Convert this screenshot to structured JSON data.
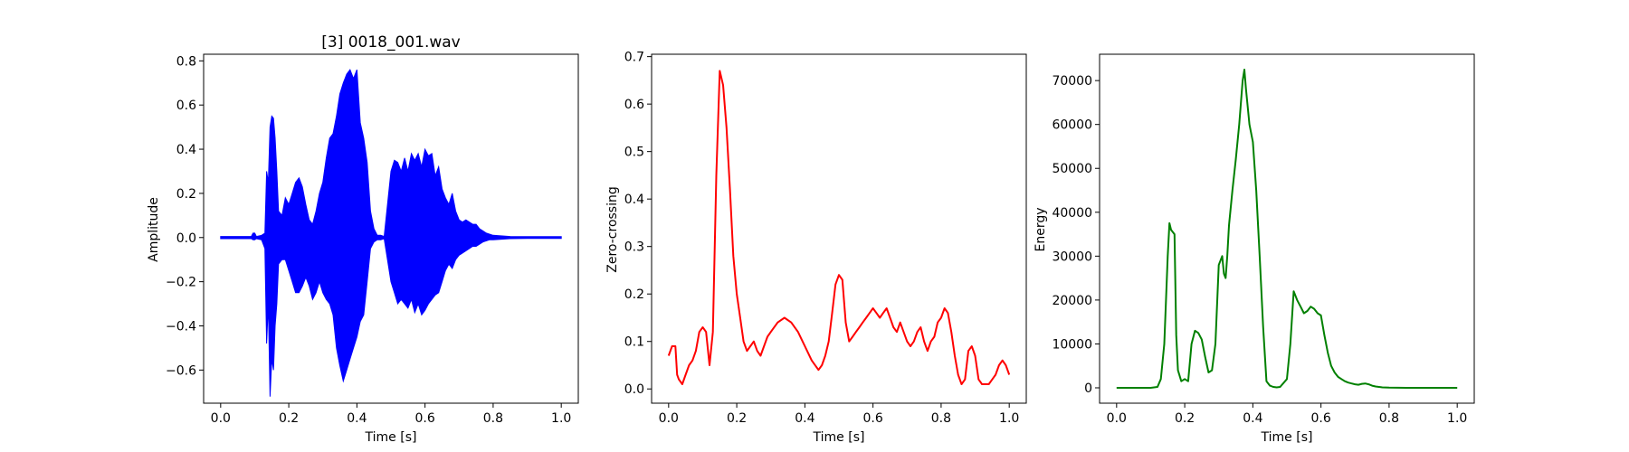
{
  "chart_data": [
    {
      "type": "line",
      "title": "[3] 0018_001.wav",
      "xlabel": "Time [s]",
      "ylabel": "Amplitude",
      "xlim": [
        -0.05,
        1.05
      ],
      "ylim": [
        -0.75,
        0.83
      ],
      "xticks": [
        0.0,
        0.2,
        0.4,
        0.6,
        0.8,
        1.0
      ],
      "xtick_labels": [
        "0.0",
        "0.2",
        "0.4",
        "0.6",
        "0.8",
        "1.0"
      ],
      "yticks": [
        -0.6,
        -0.4,
        -0.2,
        0.0,
        0.2,
        0.4,
        0.6,
        0.8
      ],
      "ytick_labels": [
        "−0.6",
        "−0.4",
        "−0.2",
        "0.0",
        "0.2",
        "0.4",
        "0.6",
        "0.8"
      ],
      "grid": false,
      "legend": "none",
      "color": "#0000ff",
      "render": "envelope",
      "series": [
        {
          "x": [
            0.0,
            0.09,
            0.095,
            0.1,
            0.105,
            0.12,
            0.13,
            0.135,
            0.14,
            0.145,
            0.15,
            0.155,
            0.16,
            0.165,
            0.17,
            0.18,
            0.19,
            0.2,
            0.21,
            0.22,
            0.23,
            0.24,
            0.25,
            0.26,
            0.27,
            0.28,
            0.29,
            0.3,
            0.31,
            0.32,
            0.33,
            0.34,
            0.35,
            0.36,
            0.37,
            0.38,
            0.39,
            0.4,
            0.41,
            0.42,
            0.43,
            0.44,
            0.45,
            0.46,
            0.47,
            0.48,
            0.5,
            0.51,
            0.52,
            0.53,
            0.54,
            0.55,
            0.56,
            0.57,
            0.58,
            0.59,
            0.6,
            0.61,
            0.62,
            0.63,
            0.64,
            0.65,
            0.66,
            0.67,
            0.68,
            0.69,
            0.7,
            0.71,
            0.72,
            0.73,
            0.74,
            0.75,
            0.76,
            0.77,
            0.78,
            0.79,
            0.8,
            0.85,
            0.9,
            1.0
          ],
          "y_max": [
            0.005,
            0.005,
            0.02,
            0.02,
            0.005,
            0.01,
            0.02,
            0.3,
            0.25,
            0.5,
            0.55,
            0.54,
            0.45,
            0.3,
            0.12,
            0.1,
            0.18,
            0.15,
            0.2,
            0.25,
            0.27,
            0.23,
            0.15,
            0.08,
            0.06,
            0.12,
            0.2,
            0.25,
            0.36,
            0.45,
            0.47,
            0.55,
            0.65,
            0.7,
            0.74,
            0.76,
            0.72,
            0.76,
            0.52,
            0.45,
            0.34,
            0.12,
            0.04,
            0.01,
            0.01,
            0.005,
            0.3,
            0.35,
            0.34,
            0.3,
            0.36,
            0.3,
            0.38,
            0.35,
            0.38,
            0.32,
            0.4,
            0.37,
            0.38,
            0.28,
            0.32,
            0.22,
            0.18,
            0.15,
            0.2,
            0.12,
            0.08,
            0.07,
            0.08,
            0.07,
            0.06,
            0.06,
            0.04,
            0.03,
            0.02,
            0.015,
            0.01,
            0.005,
            0.004,
            0.004
          ],
          "y_min": [
            -0.005,
            -0.005,
            -0.01,
            -0.01,
            -0.005,
            -0.01,
            -0.05,
            -0.48,
            -0.3,
            -0.72,
            -0.55,
            -0.6,
            -0.4,
            -0.3,
            -0.12,
            -0.1,
            -0.1,
            -0.15,
            -0.2,
            -0.25,
            -0.25,
            -0.22,
            -0.18,
            -0.22,
            -0.28,
            -0.25,
            -0.2,
            -0.25,
            -0.28,
            -0.3,
            -0.35,
            -0.5,
            -0.58,
            -0.65,
            -0.6,
            -0.55,
            -0.5,
            -0.45,
            -0.38,
            -0.35,
            -0.2,
            -0.05,
            -0.02,
            -0.01,
            -0.01,
            -0.005,
            -0.2,
            -0.25,
            -0.3,
            -0.28,
            -0.3,
            -0.32,
            -0.28,
            -0.34,
            -0.3,
            -0.35,
            -0.33,
            -0.3,
            -0.28,
            -0.26,
            -0.25,
            -0.2,
            -0.15,
            -0.12,
            -0.14,
            -0.1,
            -0.08,
            -0.07,
            -0.06,
            -0.05,
            -0.04,
            -0.04,
            -0.03,
            -0.02,
            -0.015,
            -0.01,
            -0.01,
            -0.005,
            -0.004,
            -0.004
          ]
        }
      ]
    },
    {
      "type": "line",
      "title": "",
      "xlabel": "Time [s]",
      "ylabel": "Zero-crossing",
      "xlim": [
        -0.05,
        1.05
      ],
      "ylim": [
        -0.03,
        0.705
      ],
      "xticks": [
        0.0,
        0.2,
        0.4,
        0.6,
        0.8,
        1.0
      ],
      "xtick_labels": [
        "0.0",
        "0.2",
        "0.4",
        "0.6",
        "0.8",
        "1.0"
      ],
      "yticks": [
        0.0,
        0.1,
        0.2,
        0.3,
        0.4,
        0.5,
        0.6,
        0.7
      ],
      "ytick_labels": [
        "0.0",
        "0.1",
        "0.2",
        "0.3",
        "0.4",
        "0.5",
        "0.6",
        "0.7"
      ],
      "grid": false,
      "legend": "none",
      "color": "#ff0000",
      "render": "line",
      "series": [
        {
          "x": [
            0.0,
            0.01,
            0.02,
            0.025,
            0.03,
            0.04,
            0.05,
            0.06,
            0.07,
            0.08,
            0.09,
            0.1,
            0.11,
            0.12,
            0.13,
            0.14,
            0.15,
            0.16,
            0.17,
            0.18,
            0.19,
            0.2,
            0.21,
            0.22,
            0.23,
            0.24,
            0.25,
            0.26,
            0.27,
            0.28,
            0.29,
            0.3,
            0.32,
            0.34,
            0.36,
            0.38,
            0.4,
            0.42,
            0.44,
            0.45,
            0.46,
            0.47,
            0.48,
            0.49,
            0.5,
            0.51,
            0.52,
            0.53,
            0.54,
            0.55,
            0.56,
            0.57,
            0.58,
            0.59,
            0.6,
            0.61,
            0.62,
            0.63,
            0.64,
            0.65,
            0.66,
            0.67,
            0.68,
            0.69,
            0.7,
            0.71,
            0.72,
            0.73,
            0.74,
            0.75,
            0.76,
            0.77,
            0.78,
            0.79,
            0.8,
            0.81,
            0.82,
            0.83,
            0.84,
            0.85,
            0.86,
            0.87,
            0.88,
            0.89,
            0.9,
            0.91,
            0.92,
            0.93,
            0.94,
            0.95,
            0.96,
            0.97,
            0.98,
            0.99,
            1.0
          ],
          "y": [
            0.07,
            0.09,
            0.09,
            0.03,
            0.02,
            0.01,
            0.03,
            0.05,
            0.06,
            0.08,
            0.12,
            0.13,
            0.12,
            0.05,
            0.12,
            0.45,
            0.67,
            0.64,
            0.55,
            0.42,
            0.28,
            0.2,
            0.15,
            0.1,
            0.08,
            0.09,
            0.1,
            0.08,
            0.07,
            0.09,
            0.11,
            0.12,
            0.14,
            0.15,
            0.14,
            0.12,
            0.09,
            0.06,
            0.04,
            0.05,
            0.07,
            0.1,
            0.16,
            0.22,
            0.24,
            0.23,
            0.14,
            0.1,
            0.11,
            0.12,
            0.13,
            0.14,
            0.15,
            0.16,
            0.17,
            0.16,
            0.15,
            0.16,
            0.17,
            0.15,
            0.13,
            0.12,
            0.14,
            0.12,
            0.1,
            0.09,
            0.1,
            0.12,
            0.13,
            0.1,
            0.08,
            0.1,
            0.11,
            0.14,
            0.15,
            0.17,
            0.16,
            0.12,
            0.07,
            0.03,
            0.01,
            0.02,
            0.08,
            0.09,
            0.07,
            0.02,
            0.01,
            0.01,
            0.01,
            0.02,
            0.03,
            0.05,
            0.06,
            0.05,
            0.03
          ]
        }
      ]
    },
    {
      "type": "line",
      "title": "",
      "xlabel": "Time [s]",
      "ylabel": "Energy",
      "xlim": [
        -0.05,
        1.05
      ],
      "ylim": [
        -3500,
        76000
      ],
      "xticks": [
        0.0,
        0.2,
        0.4,
        0.6,
        0.8,
        1.0
      ],
      "xtick_labels": [
        "0.0",
        "0.2",
        "0.4",
        "0.6",
        "0.8",
        "1.0"
      ],
      "yticks": [
        0,
        10000,
        20000,
        30000,
        40000,
        50000,
        60000,
        70000
      ],
      "ytick_labels": [
        "0",
        "10000",
        "20000",
        "30000",
        "40000",
        "50000",
        "60000",
        "70000"
      ],
      "grid": false,
      "legend": "none",
      "color": "#008000",
      "render": "line",
      "series": [
        {
          "x": [
            0.0,
            0.1,
            0.12,
            0.13,
            0.14,
            0.15,
            0.155,
            0.16,
            0.17,
            0.175,
            0.18,
            0.19,
            0.2,
            0.21,
            0.22,
            0.23,
            0.24,
            0.25,
            0.26,
            0.27,
            0.28,
            0.29,
            0.3,
            0.31,
            0.315,
            0.32,
            0.325,
            0.33,
            0.34,
            0.35,
            0.36,
            0.37,
            0.375,
            0.38,
            0.39,
            0.4,
            0.41,
            0.42,
            0.43,
            0.44,
            0.45,
            0.46,
            0.47,
            0.48,
            0.5,
            0.51,
            0.52,
            0.53,
            0.54,
            0.55,
            0.56,
            0.57,
            0.58,
            0.59,
            0.6,
            0.61,
            0.62,
            0.63,
            0.64,
            0.65,
            0.66,
            0.67,
            0.68,
            0.69,
            0.7,
            0.71,
            0.72,
            0.73,
            0.74,
            0.75,
            0.76,
            0.77,
            0.78,
            0.8,
            0.85,
            0.9,
            1.0
          ],
          "y": [
            0,
            0,
            200,
            2000,
            10000,
            30000,
            37500,
            36000,
            35000,
            12000,
            4000,
            1500,
            2000,
            1500,
            10000,
            13000,
            12500,
            11000,
            7000,
            3500,
            4000,
            10000,
            28000,
            30000,
            26000,
            25000,
            30000,
            37000,
            45000,
            52000,
            60000,
            70000,
            72500,
            68000,
            60000,
            56000,
            45000,
            30000,
            14000,
            1500,
            500,
            200,
            100,
            200,
            2000,
            10000,
            22000,
            20000,
            18500,
            17000,
            17500,
            18500,
            18000,
            17000,
            16500,
            12000,
            8000,
            5000,
            3500,
            2500,
            2000,
            1500,
            1200,
            1000,
            800,
            700,
            900,
            1000,
            800,
            500,
            300,
            200,
            100,
            50,
            0,
            0,
            0
          ]
        }
      ]
    }
  ]
}
